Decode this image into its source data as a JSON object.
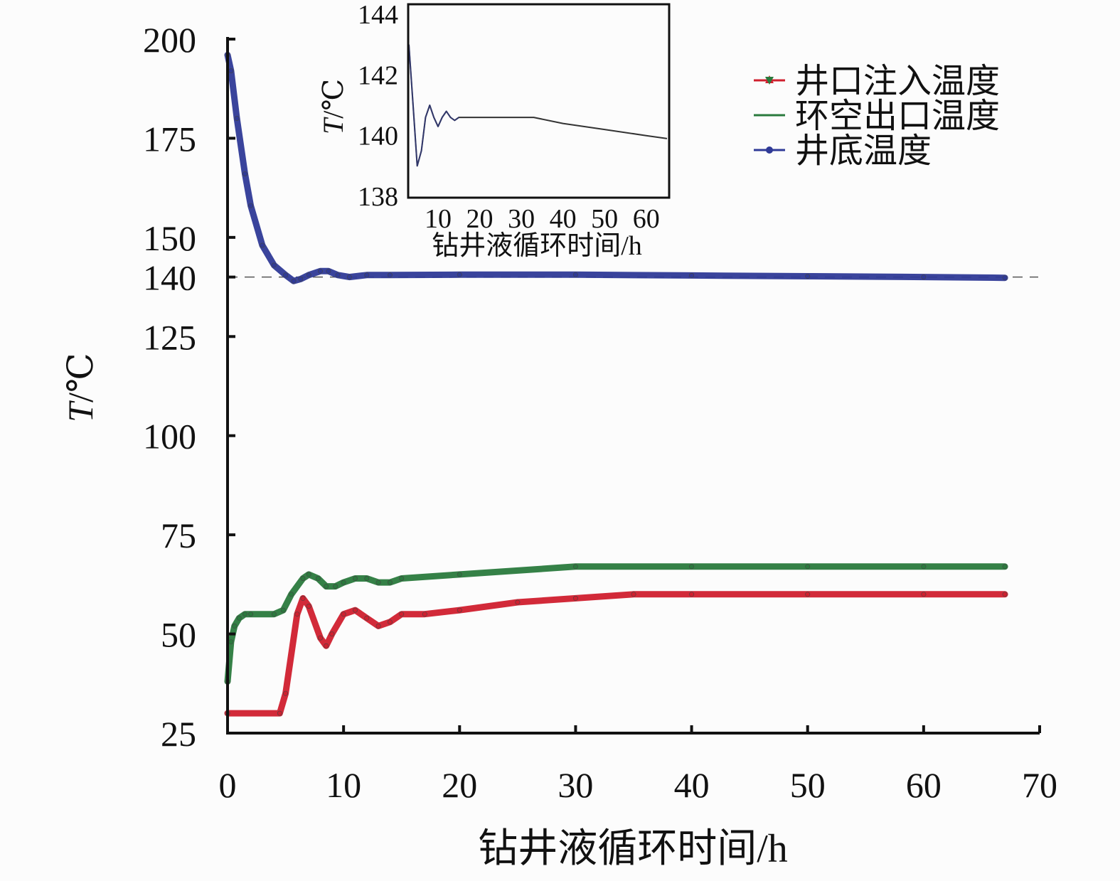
{
  "chart_data": [
    {
      "id": "main",
      "type": "line",
      "xlabel": "钻井液循环时间/h",
      "ylabel_italic": "T",
      "ylabel_unit": "/℃",
      "xlim": [
        0,
        70
      ],
      "ylim": [
        25,
        200
      ],
      "xticks": [
        0,
        10,
        20,
        30,
        40,
        50,
        60,
        70
      ],
      "yticks": [
        25,
        50,
        75,
        100,
        125,
        140,
        150,
        175,
        200
      ],
      "reference_line": {
        "y": 140,
        "style": "dashed",
        "color": "#555555"
      },
      "legend": {
        "placement": "top-right"
      },
      "series": [
        {
          "name": "井口注入温度",
          "color": "#d01f2e",
          "marker": "triangle-up",
          "x": [
            0,
            4.5,
            5,
            6,
            6.5,
            7,
            8,
            8.5,
            9,
            10,
            11,
            12,
            13,
            14,
            15,
            17,
            20,
            25,
            30,
            35,
            40,
            50,
            60,
            67
          ],
          "y": [
            30,
            30,
            35,
            55,
            59,
            57,
            49,
            47,
            50,
            55,
            56,
            54,
            52,
            53,
            55,
            55,
            56,
            58,
            59,
            60,
            60,
            60,
            60,
            60
          ]
        },
        {
          "name": "环空出口温度",
          "color": "#2a7a3d",
          "marker": "triangle-down",
          "x": [
            0,
            0.3,
            0.6,
            1,
            1.5,
            2,
            4,
            4.8,
            5.5,
            6.5,
            7,
            7.8,
            8.5,
            9.3,
            10,
            11,
            12,
            13,
            14,
            15,
            20,
            30,
            40,
            50,
            60,
            67
          ],
          "y": [
            38,
            48,
            52,
            54,
            55,
            55,
            55,
            56,
            60,
            64,
            65,
            64,
            62,
            62,
            63,
            64,
            64,
            63,
            63,
            64,
            65,
            67,
            67,
            67,
            67,
            67
          ]
        },
        {
          "name": "井底温度",
          "color": "#2f3a97",
          "marker": "circle",
          "x": [
            0,
            0.3,
            0.8,
            1.5,
            2,
            3,
            4,
            5,
            5.7,
            6.3,
            7,
            8,
            8.7,
            9.5,
            10.5,
            12,
            14,
            20,
            30,
            40,
            50,
            60,
            67
          ],
          "y": [
            196,
            192,
            180,
            166,
            158,
            148,
            143,
            140.5,
            139,
            139.5,
            140.5,
            141.5,
            141.5,
            140.5,
            140,
            140.5,
            140.5,
            140.6,
            140.6,
            140.4,
            140.2,
            140,
            139.8
          ]
        }
      ]
    },
    {
      "id": "inset",
      "type": "line",
      "xlabel": "钻井液循环时间/h",
      "ylabel_italic": "T",
      "ylabel_unit": "/℃",
      "xlim": [
        3,
        65
      ],
      "ylim": [
        138,
        144
      ],
      "xticks": [
        10,
        20,
        30,
        40,
        50,
        60
      ],
      "yticks": [
        138,
        140,
        142,
        144
      ],
      "series": [
        {
          "color": "#2f3a97",
          "x": [
            3,
            4,
            5,
            6,
            7,
            8,
            9,
            10,
            11,
            12,
            13,
            14,
            15,
            17,
            20,
            30,
            33,
            40,
            50,
            60,
            65
          ],
          "y": [
            143,
            141,
            139,
            139.5,
            140.6,
            141,
            140.6,
            140.3,
            140.6,
            140.8,
            140.6,
            140.5,
            140.6,
            140.6,
            140.6,
            140.6,
            140.6,
            140.4,
            140.2,
            140,
            139.9
          ]
        }
      ]
    }
  ]
}
